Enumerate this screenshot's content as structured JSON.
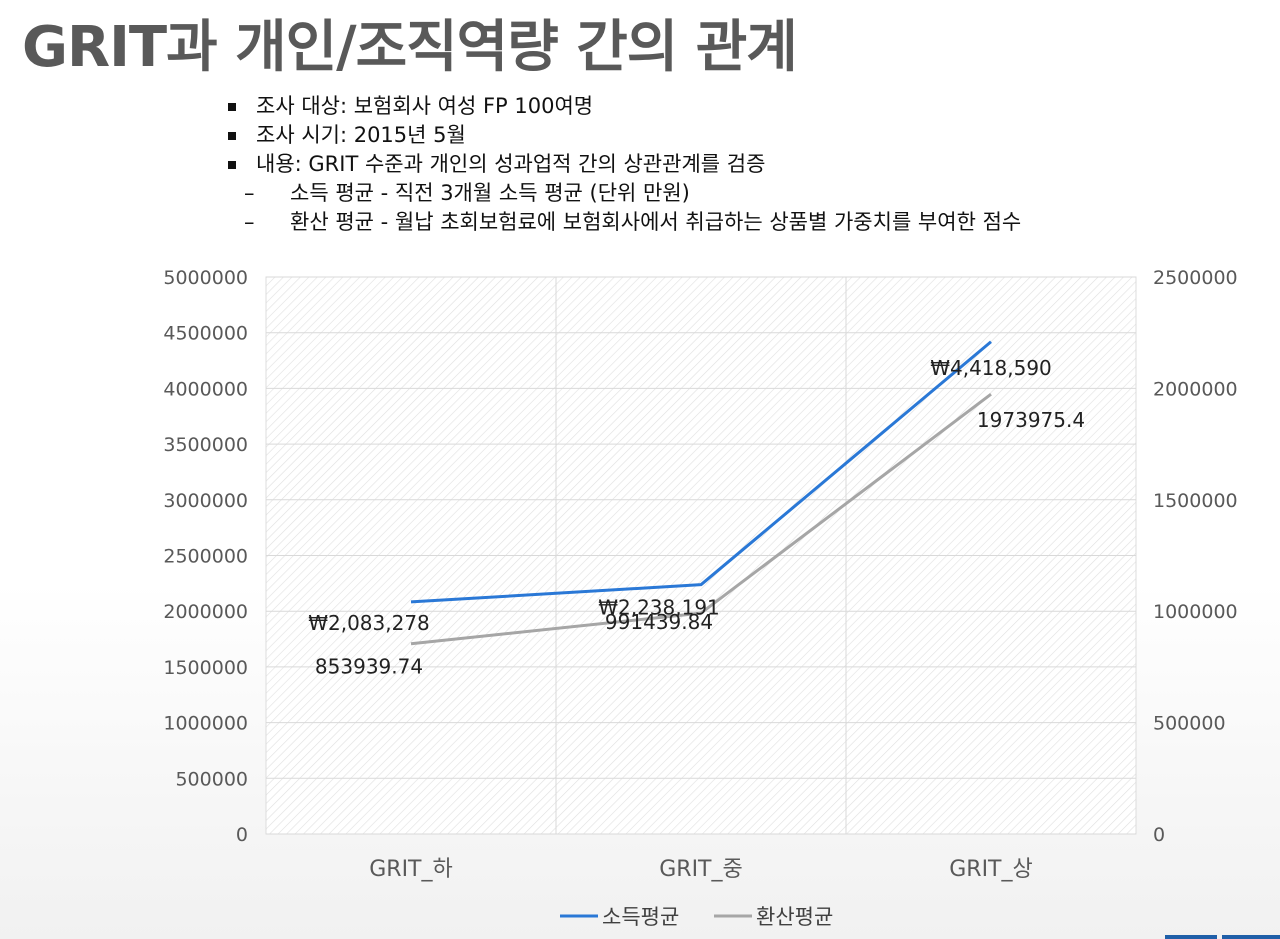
{
  "slide": {
    "title": "GRIT과 개인/조직역량 간의 관계",
    "bullets": [
      "조사 대상: 보험회사 여성 FP 100여명",
      "조사 시기: 2015년 5월",
      "내용: GRIT 수준과 개인의 성과업적 간의 상관관계를 검증"
    ],
    "sub_bullets": [
      "소득 평균 - 직전 3개월 소득 평균 (단위 만원)",
      "환산 평균 - 월납 초회보험료에 보험회사에서 취급하는 상품별 가중치를 부여한 점수"
    ],
    "dash_marker": "–"
  },
  "chart_data": {
    "type": "line",
    "categories": [
      "GRIT_하",
      "GRIT_중",
      "GRIT_상"
    ],
    "series": [
      {
        "name": "소득평균",
        "axis": "left",
        "values": [
          2083278,
          2238191,
          4418590
        ],
        "labels": [
          "₩2,083,278",
          "₩2,238,191",
          "₩4,418,590"
        ],
        "color": "#2a78d6"
      },
      {
        "name": "환산평균",
        "axis": "right",
        "values": [
          853939.74,
          991439.84,
          1973975.4
        ],
        "labels": [
          "853939.74",
          "991439.84",
          "1973975.4"
        ],
        "color": "#a6a6a6"
      }
    ],
    "y_left": {
      "min": 0,
      "max": 5000000,
      "ticks": [
        "0",
        "500000",
        "1000000",
        "1500000",
        "2000000",
        "2500000",
        "3000000",
        "3500000",
        "4000000",
        "4500000",
        "5000000"
      ]
    },
    "y_right": {
      "min": 0,
      "max": 2500000,
      "ticks": [
        "0",
        "500000",
        "1000000",
        "1500000",
        "2000000",
        "2500000"
      ]
    },
    "grid": true,
    "legend": "bottom"
  },
  "colors": {
    "title": "#595959",
    "grid": "#d9d9d9",
    "axis_text": "#595959",
    "accent_bar": "#1f5fa8"
  }
}
